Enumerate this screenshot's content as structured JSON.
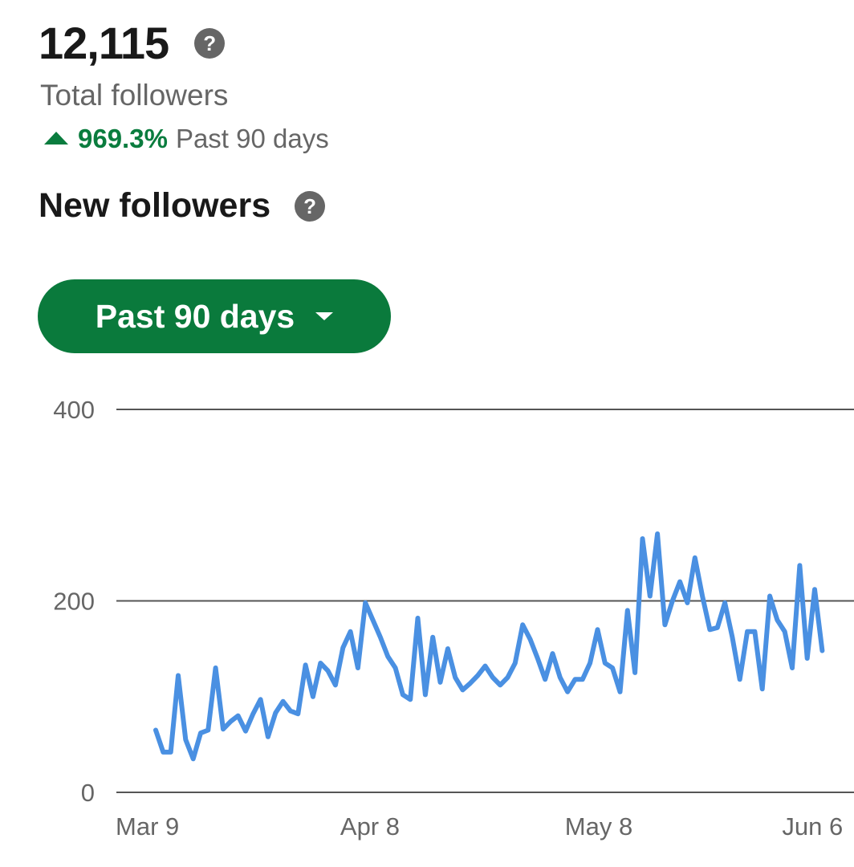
{
  "summary": {
    "total_followers": "12,115",
    "total_label": "Total followers",
    "change_pct": "969.3%",
    "change_period": "Past 90 days"
  },
  "icons": {
    "help": "question-mark-circle-icon",
    "trend": "triangle-up-icon",
    "dropdown": "caret-down-icon"
  },
  "new_followers": {
    "title": "New followers",
    "range_label": "Past 90 days"
  },
  "colors": {
    "accent_green": "#0a7a3c",
    "line_blue": "#4a90e2",
    "muted_text": "#666666"
  },
  "chart_data": {
    "type": "line",
    "x_start": "Mar 9",
    "x_tick_labels": [
      "Mar 9",
      "Apr 8",
      "May 8",
      "Jun 6"
    ],
    "x_tick_day_index": [
      0,
      30,
      60,
      89
    ],
    "ylim": [
      0,
      400
    ],
    "y_ticks": [
      0,
      200,
      400
    ],
    "y_tick_labels": [
      "0",
      "200",
      "400"
    ],
    "grid": true,
    "series": [
      {
        "values": [
          65,
          42,
          42,
          122,
          55,
          35,
          62,
          65,
          130,
          66,
          74,
          80,
          64,
          82,
          97,
          58,
          83,
          95,
          85,
          82,
          133,
          100,
          135,
          127,
          112,
          151,
          168,
          130,
          198,
          180,
          162,
          142,
          130,
          102,
          97,
          182,
          102,
          162,
          115,
          150,
          120,
          107,
          114,
          122,
          132,
          120,
          112,
          120,
          135,
          175,
          160,
          140,
          118,
          145,
          120,
          105,
          118,
          118,
          135,
          170,
          135,
          130,
          105,
          190,
          125,
          265,
          205,
          270,
          175,
          200,
          220,
          198,
          245,
          205,
          170,
          172,
          198,
          162,
          118,
          168,
          168,
          108,
          205,
          180,
          168,
          130,
          237,
          140,
          212,
          148
        ]
      }
    ]
  }
}
